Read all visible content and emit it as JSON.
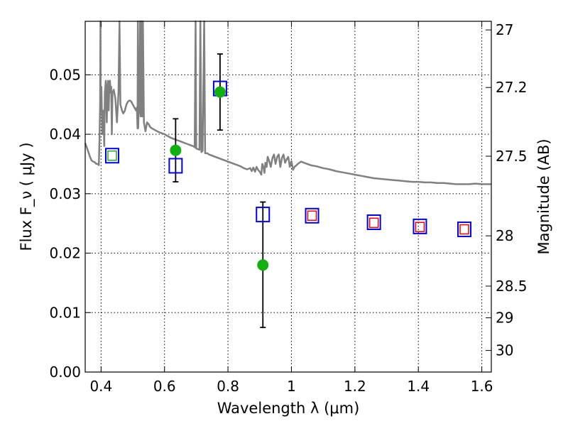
{
  "chart_data": {
    "type": "scatter",
    "title": "",
    "xlabel": "Wavelength  λ (μm)",
    "ylabel": "Flux  F_ν  ( μJy )",
    "y2label": "Magnitude (AB)",
    "xlim": [
      0.35,
      1.63
    ],
    "ylim": [
      0.0,
      0.059
    ],
    "grid": true,
    "xticks": [
      {
        "value": 0.4,
        "label": "0.4"
      },
      {
        "value": 0.6,
        "label": "0.6"
      },
      {
        "value": 0.8,
        "label": "0.8"
      },
      {
        "value": 1.0,
        "label": "1"
      },
      {
        "value": 1.2,
        "label": "1.2"
      },
      {
        "value": 1.4,
        "label": "1.4"
      },
      {
        "value": 1.6,
        "label": "1.6"
      }
    ],
    "yticks": [
      {
        "value": 0.0,
        "label": "0.00"
      },
      {
        "value": 0.01,
        "label": "0.01"
      },
      {
        "value": 0.02,
        "label": "0.02"
      },
      {
        "value": 0.03,
        "label": "0.03"
      },
      {
        "value": 0.04,
        "label": "0.04"
      },
      {
        "value": 0.05,
        "label": "0.05"
      }
    ],
    "y2ticks": [
      {
        "value": 27,
        "label": "27"
      },
      {
        "value": 27.2,
        "label": "27.2"
      },
      {
        "value": 27.5,
        "label": "27.5"
      },
      {
        "value": 28,
        "label": "28"
      },
      {
        "value": 28.5,
        "label": "28.5"
      },
      {
        "value": 29,
        "label": "29"
      },
      {
        "value": 30,
        "label": "30"
      }
    ],
    "colors": {
      "model_line": "#808080",
      "observed_points": "#11b011",
      "model_boxes": "#0000ee",
      "upper_limit_boxes": "#ee0000",
      "photometry_box": "#22aa22",
      "grid": "#000000"
    },
    "series": [
      {
        "marker": "line",
        "points": [
          [
            0.35,
            0.0385
          ],
          [
            0.355,
            0.0378
          ],
          [
            0.36,
            0.037
          ],
          [
            0.365,
            0.0362
          ],
          [
            0.37,
            0.0356
          ],
          [
            0.375,
            0.0354
          ],
          [
            0.38,
            0.0353
          ],
          [
            0.385,
            0.035
          ],
          [
            0.39,
            0.035
          ],
          [
            0.393,
            0.0348
          ],
          [
            0.395,
            0.039
          ],
          [
            0.397,
            0.045
          ],
          [
            0.398,
            0.06
          ],
          [
            0.399,
            0.044
          ],
          [
            0.401,
            0.048
          ],
          [
            0.404,
            0.04
          ],
          [
            0.408,
            0.044
          ],
          [
            0.41,
            0.038
          ],
          [
            0.412,
            0.047
          ],
          [
            0.415,
            0.049
          ],
          [
            0.418,
            0.042
          ],
          [
            0.42,
            0.048
          ],
          [
            0.422,
            0.049
          ],
          [
            0.424,
            0.044
          ],
          [
            0.426,
            0.0485
          ],
          [
            0.428,
            0.049
          ],
          [
            0.43,
            0.047
          ],
          [
            0.432,
            0.048
          ],
          [
            0.434,
            0.04
          ],
          [
            0.436,
            0.047
          ],
          [
            0.44,
            0.0475
          ],
          [
            0.445,
            0.046
          ],
          [
            0.45,
            0.042
          ],
          [
            0.455,
            0.047
          ],
          [
            0.458,
            0.06
          ],
          [
            0.461,
            0.045
          ],
          [
            0.466,
            0.044
          ],
          [
            0.47,
            0.0435
          ],
          [
            0.475,
            0.044
          ],
          [
            0.48,
            0.045
          ],
          [
            0.485,
            0.0455
          ],
          [
            0.49,
            0.0457
          ],
          [
            0.495,
            0.0455
          ],
          [
            0.5,
            0.045
          ],
          [
            0.505,
            0.0445
          ],
          [
            0.51,
            0.044
          ],
          [
            0.513,
            0.0445
          ],
          [
            0.515,
            0.041
          ],
          [
            0.516,
            0.06
          ],
          [
            0.517,
            0.041
          ],
          [
            0.518,
            0.043
          ],
          [
            0.52,
            0.044
          ],
          [
            0.523,
            0.06
          ],
          [
            0.525,
            0.043
          ],
          [
            0.527,
            0.06
          ],
          [
            0.53,
            0.043
          ],
          [
            0.532,
            0.06
          ],
          [
            0.535,
            0.042
          ],
          [
            0.54,
            0.0405
          ],
          [
            0.545,
            0.042
          ],
          [
            0.55,
            0.0417
          ],
          [
            0.555,
            0.0412
          ],
          [
            0.56,
            0.041
          ],
          [
            0.57,
            0.0407
          ],
          [
            0.58,
            0.0404
          ],
          [
            0.59,
            0.0402
          ],
          [
            0.6,
            0.04
          ],
          [
            0.61,
            0.0397
          ],
          [
            0.62,
            0.0394
          ],
          [
            0.63,
            0.0392
          ],
          [
            0.64,
            0.039
          ],
          [
            0.65,
            0.0388
          ],
          [
            0.66,
            0.0386
          ],
          [
            0.67,
            0.0384
          ],
          [
            0.68,
            0.0382
          ],
          [
            0.69,
            0.038
          ],
          [
            0.695,
            0.0378
          ],
          [
            0.698,
            0.06
          ],
          [
            0.7,
            0.0376
          ],
          [
            0.705,
            0.0375
          ],
          [
            0.71,
            0.0374
          ],
          [
            0.713,
            0.06
          ],
          [
            0.716,
            0.037
          ],
          [
            0.72,
            0.0372
          ],
          [
            0.725,
            0.06
          ],
          [
            0.728,
            0.0368
          ],
          [
            0.735,
            0.0368
          ],
          [
            0.74,
            0.0366
          ],
          [
            0.75,
            0.0364
          ],
          [
            0.76,
            0.0362
          ],
          [
            0.77,
            0.036
          ],
          [
            0.78,
            0.0358
          ],
          [
            0.79,
            0.0356
          ],
          [
            0.8,
            0.0354
          ],
          [
            0.81,
            0.0352
          ],
          [
            0.82,
            0.035
          ],
          [
            0.83,
            0.0348
          ],
          [
            0.84,
            0.0346
          ],
          [
            0.85,
            0.0343
          ],
          [
            0.86,
            0.0341
          ],
          [
            0.87,
            0.0343
          ],
          [
            0.875,
            0.0338
          ],
          [
            0.88,
            0.0344
          ],
          [
            0.885,
            0.0337
          ],
          [
            0.89,
            0.0345
          ],
          [
            0.895,
            0.034
          ],
          [
            0.9,
            0.0337
          ],
          [
            0.905,
            0.0332
          ],
          [
            0.908,
            0.035
          ],
          [
            0.912,
            0.0345
          ],
          [
            0.915,
            0.0335
          ],
          [
            0.918,
            0.0352
          ],
          [
            0.922,
            0.0345
          ],
          [
            0.925,
            0.0362
          ],
          [
            0.93,
            0.0355
          ],
          [
            0.935,
            0.0345
          ],
          [
            0.94,
            0.036
          ],
          [
            0.945,
            0.0366
          ],
          [
            0.95,
            0.035
          ],
          [
            0.955,
            0.0362
          ],
          [
            0.96,
            0.0366
          ],
          [
            0.965,
            0.0345
          ],
          [
            0.97,
            0.036
          ],
          [
            0.975,
            0.0366
          ],
          [
            0.98,
            0.0352
          ],
          [
            0.985,
            0.0358
          ],
          [
            0.99,
            0.0362
          ],
          [
            0.995,
            0.0345
          ],
          [
            1.0,
            0.0355
          ],
          [
            1.005,
            0.034
          ],
          [
            1.01,
            0.0345
          ],
          [
            1.02,
            0.035
          ],
          [
            1.03,
            0.0354
          ],
          [
            1.04,
            0.0352
          ],
          [
            1.06,
            0.0348
          ],
          [
            1.08,
            0.0346
          ],
          [
            1.1,
            0.0343
          ],
          [
            1.12,
            0.0341
          ],
          [
            1.14,
            0.0338
          ],
          [
            1.16,
            0.0336
          ],
          [
            1.18,
            0.0334
          ],
          [
            1.2,
            0.0332
          ],
          [
            1.22,
            0.033
          ],
          [
            1.24,
            0.0328
          ],
          [
            1.26,
            0.0326
          ],
          [
            1.28,
            0.0325
          ],
          [
            1.3,
            0.0324
          ],
          [
            1.32,
            0.0323
          ],
          [
            1.34,
            0.0322
          ],
          [
            1.36,
            0.0321
          ],
          [
            1.38,
            0.032
          ],
          [
            1.4,
            0.032
          ],
          [
            1.42,
            0.0319
          ],
          [
            1.44,
            0.0319
          ],
          [
            1.46,
            0.0318
          ],
          [
            1.48,
            0.0318
          ],
          [
            1.5,
            0.0317
          ],
          [
            1.52,
            0.0316
          ],
          [
            1.54,
            0.0316
          ],
          [
            1.56,
            0.0316
          ],
          [
            1.58,
            0.0317
          ],
          [
            1.6,
            0.0316
          ],
          [
            1.63,
            0.0316
          ]
        ]
      },
      {
        "marker": "square",
        "color": "#0000ee",
        "points": [
          [
            0.435,
            0.0364
          ],
          [
            0.635,
            0.0347
          ],
          [
            0.775,
            0.0477
          ],
          [
            0.91,
            0.0265
          ],
          [
            1.065,
            0.0263
          ],
          [
            1.26,
            0.0252
          ],
          [
            1.405,
            0.0245
          ],
          [
            1.545,
            0.024
          ]
        ]
      },
      {
        "marker": "square-small",
        "color": "#ee0000",
        "points": [
          [
            1.065,
            0.0263
          ],
          [
            1.26,
            0.0251
          ],
          [
            1.405,
            0.0244
          ],
          [
            1.545,
            0.024
          ]
        ]
      },
      {
        "marker": "square-small",
        "color": "#22aa22",
        "points": [
          [
            0.435,
            0.0364
          ]
        ]
      },
      {
        "marker": "circle",
        "color": "#11b011",
        "points": [
          [
            0.635,
            0.0373
          ],
          [
            0.775,
            0.0471
          ],
          [
            0.91,
            0.018
          ]
        ],
        "errors": [
          [
            0.032,
            0.0426
          ],
          [
            0.0407,
            0.0535
          ],
          [
            0.0075,
            0.0286
          ]
        ]
      }
    ]
  }
}
